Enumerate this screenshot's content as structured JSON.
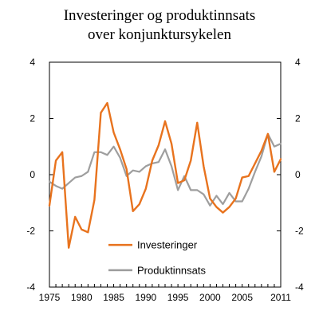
{
  "chart_data": {
    "type": "line",
    "title": [
      "Investeringer og produktinnsats",
      "over konjunktursykelen"
    ],
    "xlabel": "",
    "ylabel": "",
    "xlim": [
      1975,
      2011
    ],
    "ylim": [
      -4,
      4
    ],
    "x_ticks": [
      "1975",
      "1980",
      "1985",
      "1990",
      "1995",
      "2000",
      "2005",
      "2011"
    ],
    "x_tick_values": [
      1975,
      1980,
      1985,
      1990,
      1995,
      2000,
      2005,
      2011
    ],
    "y_ticks_left": [
      "4",
      "2",
      "0",
      "-2",
      "-4"
    ],
    "y_ticks_right": [
      "4",
      "2",
      "0",
      "-2",
      "-4"
    ],
    "y_tick_values": [
      4,
      2,
      0,
      -2,
      -4
    ],
    "grid": false,
    "legend_position": "bottom-center",
    "series": [
      {
        "name": "Investeringer",
        "color": "#e8731e",
        "x": [
          1975,
          1976,
          1977,
          1978,
          1979,
          1980,
          1981,
          1982,
          1983,
          1984,
          1985,
          1986,
          1987,
          1988,
          1989,
          1990,
          1991,
          1992,
          1993,
          1994,
          1995,
          1996,
          1997,
          1998,
          1999,
          2000,
          2001,
          2002,
          2003,
          2004,
          2005,
          2006,
          2007,
          2008,
          2009,
          2010,
          2011
        ],
        "y": [
          -1.1,
          0.5,
          0.8,
          -2.6,
          -1.5,
          -1.95,
          -2.05,
          -0.9,
          2.2,
          2.55,
          1.5,
          0.9,
          0.2,
          -1.3,
          -1.05,
          -0.5,
          0.5,
          1.05,
          1.9,
          1.1,
          -0.3,
          -0.2,
          0.5,
          1.85,
          0.3,
          -0.85,
          -1.15,
          -1.35,
          -1.15,
          -0.85,
          -0.1,
          -0.05,
          0.4,
          0.85,
          1.45,
          0.1,
          0.55
        ]
      },
      {
        "name": "Produktinnsats",
        "color": "#9e9e9e",
        "x": [
          1975,
          1976,
          1977,
          1978,
          1979,
          1980,
          1981,
          1982,
          1983,
          1984,
          1985,
          1986,
          1987,
          1988,
          1989,
          1990,
          1991,
          1992,
          1993,
          1994,
          1995,
          1996,
          1997,
          1998,
          1999,
          2000,
          2001,
          2002,
          2003,
          2004,
          2005,
          2006,
          2007,
          2008,
          2009,
          2010,
          2011
        ],
        "y": [
          -0.25,
          -0.4,
          -0.5,
          -0.3,
          -0.1,
          -0.05,
          0.1,
          0.8,
          0.8,
          0.7,
          1.0,
          0.6,
          -0.05,
          0.15,
          0.1,
          0.3,
          0.4,
          0.45,
          0.9,
          0.3,
          -0.55,
          -0.05,
          -0.55,
          -0.55,
          -0.7,
          -1.1,
          -0.75,
          -1.05,
          -0.65,
          -0.95,
          -0.95,
          -0.5,
          0.1,
          0.65,
          1.45,
          1.0,
          1.1
        ]
      }
    ]
  }
}
